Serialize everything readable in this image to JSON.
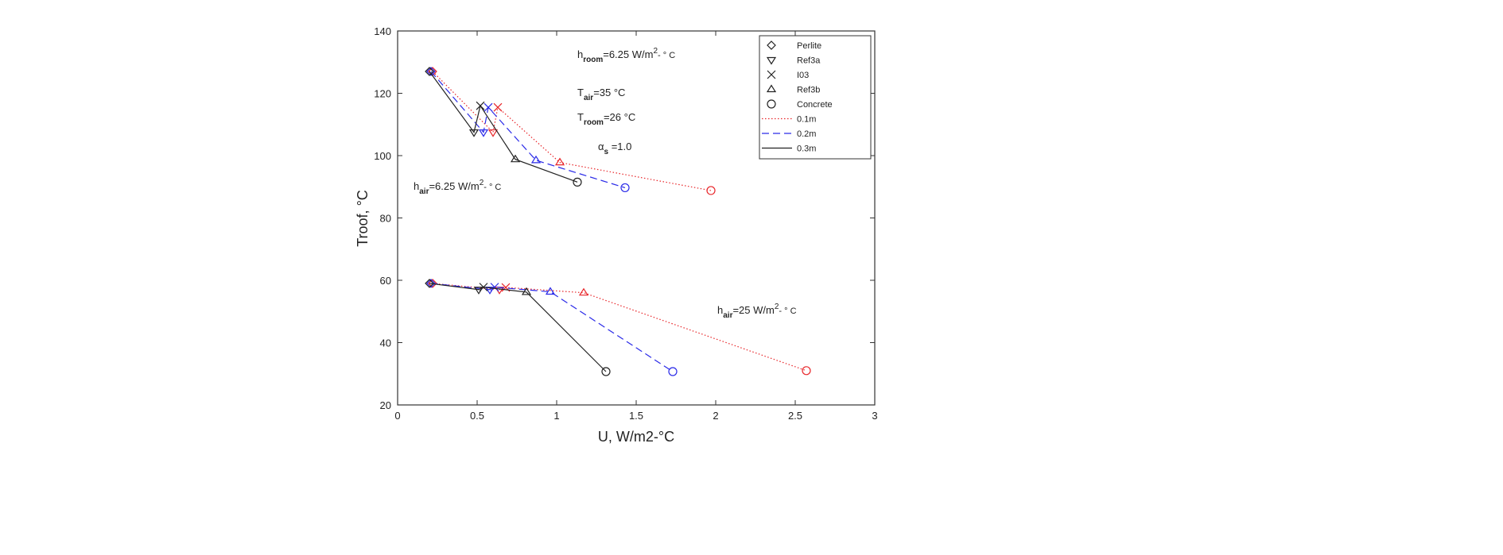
{
  "chart_data": {
    "type": "line",
    "title": "",
    "xlabel": "U, W/m2-°C",
    "ylabel": "Troof, °C",
    "xlim": [
      0,
      3
    ],
    "ylim": [
      20,
      140
    ],
    "xticks": [
      "0",
      "0.5",
      "1",
      "1.5",
      "2",
      "2.5",
      "3"
    ],
    "yticks": [
      "20",
      "40",
      "60",
      "80",
      "100",
      "120",
      "140"
    ],
    "grid": false,
    "legend_position": "top-right",
    "markers": [
      {
        "name": "Perlite",
        "symbol": "diamond"
      },
      {
        "name": "Ref3a",
        "symbol": "triangle-down"
      },
      {
        "name": "I03",
        "symbol": "x"
      },
      {
        "name": "Ref3b",
        "symbol": "triangle-up"
      },
      {
        "name": "Concrete",
        "symbol": "circle"
      }
    ],
    "thicknesses": [
      {
        "name": "0.1m",
        "color": "#e8262a",
        "dash": "dotted"
      },
      {
        "name": "0.2m",
        "color": "#2a2ae8",
        "dash": "dashed"
      },
      {
        "name": "0.3m",
        "color": "#222222",
        "dash": "solid"
      }
    ],
    "groups": [
      {
        "label": "h_air=6.25 W/m2-°C",
        "series": [
          {
            "thickness": "0.1m",
            "x": [
              0.22,
              0.6,
              0.63,
              1.02,
              1.97
            ],
            "y": [
              127,
              107.5,
              115.5,
              97.8,
              88.8
            ]
          },
          {
            "thickness": "0.2m",
            "x": [
              0.21,
              0.54,
              0.57,
              0.87,
              1.43
            ],
            "y": [
              127,
              107.5,
              115.5,
              98.5,
              89.7
            ]
          },
          {
            "thickness": "0.3m",
            "x": [
              0.2,
              0.48,
              0.52,
              0.74,
              1.13
            ],
            "y": [
              127,
              107.5,
              116,
              98.8,
              91.5
            ]
          }
        ]
      },
      {
        "label": "h_air=25 W/m2-°C",
        "series": [
          {
            "thickness": "0.1m",
            "x": [
              0.22,
              0.64,
              0.68,
              1.17,
              2.57
            ],
            "y": [
              59,
              57,
              57.7,
              56,
              31
            ]
          },
          {
            "thickness": "0.2m",
            "x": [
              0.21,
              0.58,
              0.61,
              0.96,
              1.73
            ],
            "y": [
              59,
              57,
              57.8,
              56.3,
              30.7
            ]
          },
          {
            "thickness": "0.3m",
            "x": [
              0.2,
              0.51,
              0.54,
              0.81,
              1.31
            ],
            "y": [
              59,
              57,
              57.8,
              56.2,
              30.7
            ]
          }
        ]
      }
    ],
    "annotations": {
      "h_room": {
        "main": "h",
        "sub": "room",
        "rest": "=6.25 W/m",
        "sup": "2",
        "tail": "- ° C"
      },
      "T_air": {
        "main": "T",
        "sub": "air",
        "rest": "=35 °C"
      },
      "T_room": {
        "main": "T",
        "sub": "room",
        "rest": "=26 °C"
      },
      "alpha_s": {
        "main": "α",
        "sub": "s",
        "rest": " =1.0"
      },
      "h_air_low": {
        "main": "h",
        "sub": "air",
        "rest": "=6.25 W/m",
        "sup": "2",
        "tail": "- ° C"
      },
      "h_air_high": {
        "main": "h",
        "sub": "air",
        "rest": "=25 W/m",
        "sup": "2",
        "tail": "- ° C"
      }
    }
  }
}
